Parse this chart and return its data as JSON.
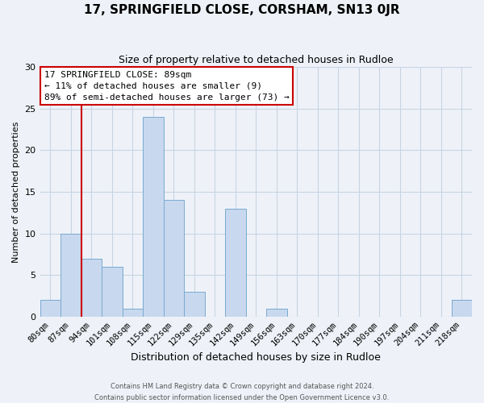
{
  "title": "17, SPRINGFIELD CLOSE, CORSHAM, SN13 0JR",
  "subtitle": "Size of property relative to detached houses in Rudloe",
  "xlabel": "Distribution of detached houses by size in Rudloe",
  "ylabel": "Number of detached properties",
  "footer_line1": "Contains HM Land Registry data © Crown copyright and database right 2024.",
  "footer_line2": "Contains public sector information licensed under the Open Government Licence v3.0.",
  "bin_labels": [
    "80sqm",
    "87sqm",
    "94sqm",
    "101sqm",
    "108sqm",
    "115sqm",
    "122sqm",
    "129sqm",
    "135sqm",
    "142sqm",
    "149sqm",
    "156sqm",
    "163sqm",
    "170sqm",
    "177sqm",
    "184sqm",
    "190sqm",
    "197sqm",
    "204sqm",
    "211sqm",
    "218sqm"
  ],
  "bar_heights": [
    2,
    10,
    7,
    6,
    1,
    24,
    14,
    3,
    0,
    13,
    0,
    1,
    0,
    0,
    0,
    0,
    0,
    0,
    0,
    0,
    2
  ],
  "bar_color": "#c8d8ee",
  "bar_edge_color": "#7aaad0",
  "red_line_after_index": 1,
  "highlight_color": "#cc0000",
  "annotation_text_line1": "17 SPRINGFIELD CLOSE: 89sqm",
  "annotation_text_line2": "← 11% of detached houses are smaller (9)",
  "annotation_text_line3": "89% of semi-detached houses are larger (73) →",
  "annotation_box_color": "#ffffff",
  "annotation_box_edge_color": "#cc0000",
  "ylim": [
    0,
    30
  ],
  "yticks": [
    0,
    5,
    10,
    15,
    20,
    25,
    30
  ],
  "grid_color": "#c8d4e4",
  "background_color": "#eef2f8",
  "title_fontsize": 11,
  "subtitle_fontsize": 9,
  "xlabel_fontsize": 9,
  "ylabel_fontsize": 8,
  "tick_fontsize": 7.5,
  "annotation_fontsize": 8,
  "footer_fontsize": 6
}
